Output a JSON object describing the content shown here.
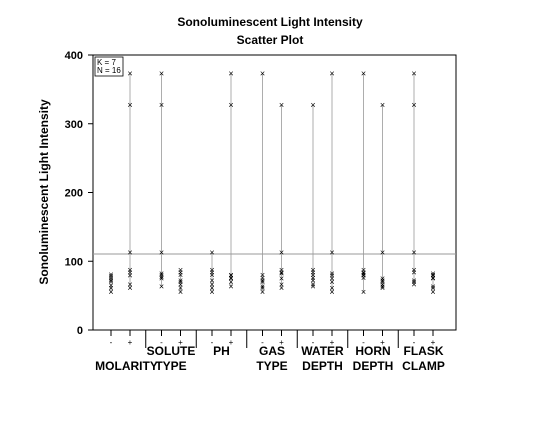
{
  "chart_data": {
    "type": "scatter",
    "title": "Sonoluminescent Light Intensity",
    "subtitle": "Scatter Plot",
    "ylabel": "Sonoluminescent Light Intensity",
    "xlabel": "",
    "ylim": [
      0,
      400
    ],
    "yticks": [
      0,
      100,
      200,
      300,
      400
    ],
    "reference_line": 110.6,
    "annotation": [
      "K = 7",
      "N = 16"
    ],
    "grid": false,
    "levels": [
      "-",
      "+"
    ],
    "factors": [
      {
        "label_lines": [
          "",
          "MOLARITY"
        ],
        "minus": [
          80.6,
          78.8,
          75.9,
          72.4,
          70.2,
          64.8,
          61.2,
          55.0
        ],
        "plus": [
          373.0,
          327.0,
          113.0,
          87.0,
          84.0,
          79.0,
          66.0,
          61.0
        ]
      },
      {
        "label_lines": [
          "SOLUTE",
          "TYPE"
        ],
        "minus": [
          373.0,
          327.0,
          113.0,
          82.0,
          80.0,
          77.0,
          75.0,
          63.0
        ],
        "plus": [
          87.0,
          84.0,
          80.0,
          72.0,
          70.0,
          66.0,
          61.0,
          55.0
        ]
      },
      {
        "label_lines": [
          "PH",
          ""
        ],
        "minus": [
          113.0,
          87.0,
          84.0,
          80.0,
          72.0,
          66.0,
          61.0,
          55.0
        ],
        "plus": [
          373.0,
          327.0,
          80.0,
          79.0,
          76.0,
          75.0,
          70.0,
          63.0
        ]
      },
      {
        "label_lines": [
          "GAS",
          "TYPE"
        ],
        "minus": [
          373.0,
          80.0,
          76.0,
          72.0,
          70.0,
          63.0,
          61.0,
          55.0
        ],
        "plus": [
          327.0,
          113.0,
          87.0,
          84.0,
          82.0,
          75.0,
          66.0,
          61.0
        ]
      },
      {
        "label_lines": [
          "WATER",
          "DEPTH"
        ],
        "minus": [
          327.0,
          87.0,
          84.0,
          80.0,
          76.0,
          72.0,
          66.0,
          63.0
        ],
        "plus": [
          373.0,
          113.0,
          82.0,
          79.0,
          75.0,
          70.0,
          61.0,
          55.0
        ]
      },
      {
        "label_lines": [
          "HORN",
          "DEPTH"
        ],
        "minus": [
          373.0,
          87.0,
          84.0,
          82.0,
          80.0,
          79.0,
          76.0,
          55.0
        ],
        "plus": [
          327.0,
          113.0,
          75.0,
          72.0,
          70.0,
          66.0,
          63.0,
          61.0
        ]
      },
      {
        "label_lines": [
          "FLASK",
          "CLAMP"
        ],
        "minus": [
          373.0,
          327.0,
          113.0,
          87.0,
          84.0,
          72.0,
          70.0,
          66.0
        ],
        "plus": [
          82.0,
          80.0,
          79.0,
          76.0,
          75.0,
          63.0,
          61.0,
          55.0
        ]
      }
    ]
  }
}
